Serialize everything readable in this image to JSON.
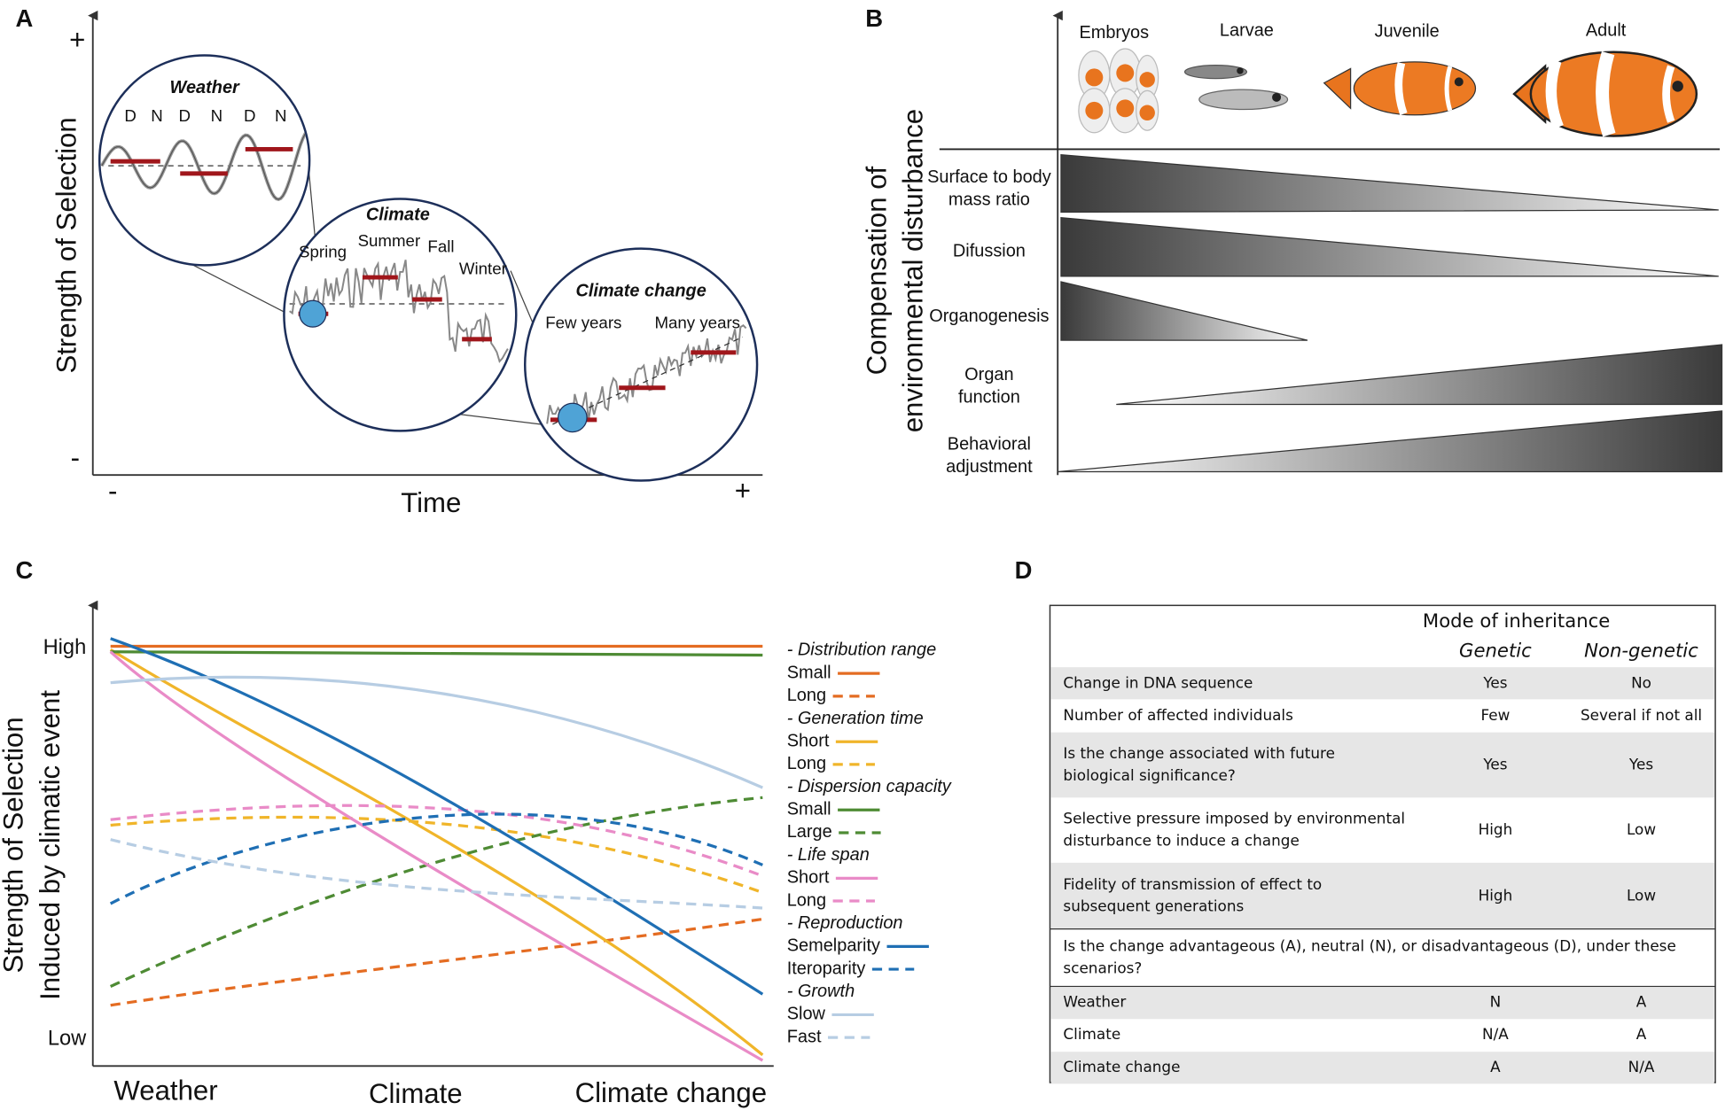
{
  "panel_a": {
    "label": "A",
    "y_axis": "Strength of Selection",
    "x_axis": "Time",
    "y_max": "+",
    "y_min": "-",
    "x_min": "-",
    "x_max": "+",
    "weather": {
      "title": "Weather",
      "marks": [
        "D",
        "N",
        "D",
        "N",
        "D",
        "N"
      ]
    },
    "climate": {
      "title": "Climate",
      "seasons": [
        "Spring",
        "Summer",
        "Fall",
        "Winter"
      ]
    },
    "climate_change": {
      "title": "Climate change",
      "periods": [
        "Few years",
        "Many years"
      ]
    }
  },
  "panel_b": {
    "label": "B",
    "y_axis": [
      "Compensation of",
      "environmental disturbance"
    ],
    "stages": [
      "Embryos",
      "Larvae",
      "Juvenile",
      "Adult"
    ],
    "rows": [
      [
        "Surface to body",
        "mass ratio"
      ],
      [
        "Difussion"
      ],
      [
        "Organogenesis"
      ],
      [
        "Organ",
        "function"
      ],
      [
        "Behavioral",
        "adjustment"
      ]
    ]
  },
  "panel_c": {
    "label": "C",
    "y_axis": [
      "Strength of Selection",
      "Induced by climatic event"
    ],
    "y_max": "High",
    "y_min": "Low",
    "x_categories": [
      "Weather",
      "Climate",
      "Climate change"
    ],
    "legend": [
      {
        "group": "- Distribution range",
        "items": [
          {
            "name": "Small",
            "color": "#e46c22",
            "dashed": false
          },
          {
            "name": "Long",
            "color": "#e46c22",
            "dashed": true
          }
        ]
      },
      {
        "group": "- Generation time",
        "items": [
          {
            "name": "Short",
            "color": "#f0b52a",
            "dashed": false
          },
          {
            "name": "Long",
            "color": "#f0b52a",
            "dashed": true
          }
        ]
      },
      {
        "group": "- Dispersion capacity",
        "items": [
          {
            "name": "Small",
            "color": "#4e8b34",
            "dashed": false
          },
          {
            "name": "Large",
            "color": "#4e8b34",
            "dashed": true
          }
        ]
      },
      {
        "group": "- Life span",
        "items": [
          {
            "name": "Short",
            "color": "#e98bc7",
            "dashed": false
          },
          {
            "name": "Long",
            "color": "#e98bc7",
            "dashed": true
          }
        ]
      },
      {
        "group": "- Reproduction",
        "items": [
          {
            "name": "Semelparity",
            "color": "#1f6fb4",
            "dashed": false
          },
          {
            "name": "Iteroparity",
            "color": "#1f6fb4",
            "dashed": true
          }
        ]
      },
      {
        "group": "- Growth",
        "items": [
          {
            "name": "Slow",
            "color": "#b7cde3",
            "dashed": false
          },
          {
            "name": "Fast",
            "color": "#b7cde3",
            "dashed": true
          }
        ]
      }
    ]
  },
  "panel_d": {
    "label": "D",
    "title": "Mode of inheritance",
    "columns": [
      "Genetic",
      "Non-genetic"
    ],
    "rows": [
      {
        "label": [
          "Change in DNA sequence"
        ],
        "values": [
          "Yes",
          "No"
        ]
      },
      {
        "label": [
          "Number of affected individuals"
        ],
        "values": [
          "Few",
          "Several if not all"
        ]
      },
      {
        "label": [
          "Is the change associated with future",
          "biological significance?"
        ],
        "values": [
          "Yes",
          "Yes"
        ]
      },
      {
        "label": [
          "Selective pressure imposed by environmental",
          "disturbance to induce a change"
        ],
        "values": [
          "High",
          "Low"
        ]
      },
      {
        "label": [
          "Fidelity of transmission of effect to",
          "subsequent generations"
        ],
        "values": [
          "High",
          "Low"
        ]
      }
    ],
    "question": [
      "Is the change advantageous (A), neutral (N), or disadvantageous (D), under these",
      "scenarios?"
    ],
    "scenarios": [
      {
        "label": "Weather",
        "values": [
          "N",
          "A"
        ]
      },
      {
        "label": "Climate",
        "values": [
          "N/A",
          "A"
        ]
      },
      {
        "label": "Climate change",
        "values": [
          "A",
          "N/A"
        ]
      }
    ]
  }
}
